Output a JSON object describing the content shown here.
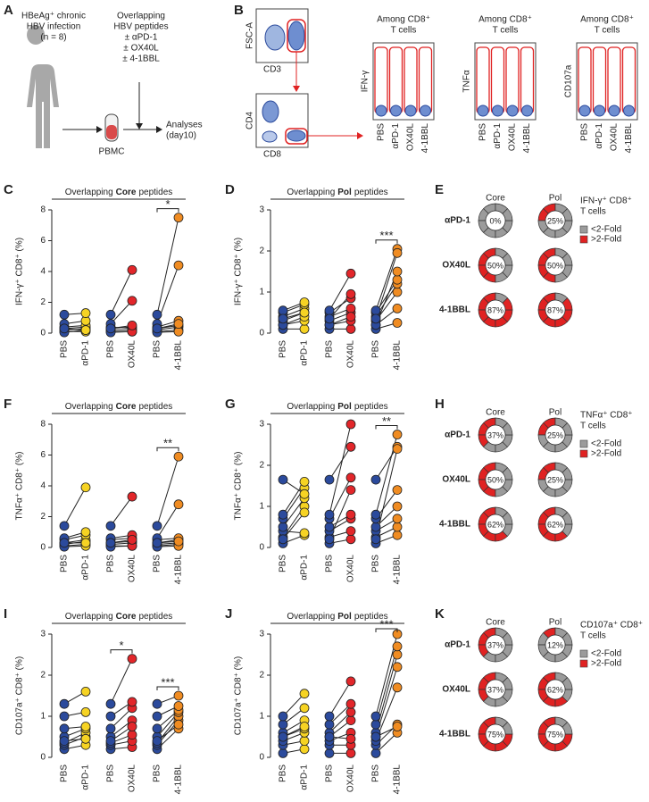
{
  "panel_labels": [
    "A",
    "B",
    "C",
    "D",
    "E",
    "F",
    "G",
    "H",
    "I",
    "J",
    "K"
  ],
  "schematic": {
    "patient": [
      "HBeAg⁺ chronic",
      "HBV infection",
      "(n = 8)"
    ],
    "treatment": [
      "Overlapping",
      "HBV peptides",
      "± αPD-1",
      "± OX40L",
      "± 4-1BBL"
    ],
    "sample": "PBMC",
    "readout": [
      "Analyses",
      "(day10)"
    ]
  },
  "flow": {
    "gating_axes": [
      "FSC-A",
      "CD3",
      "CD4",
      "CD8"
    ],
    "plots": [
      {
        "title": [
          "Among CD8⁺",
          "T cells"
        ],
        "y_label": "IFN-γ"
      },
      {
        "title": [
          "Among CD8⁺",
          "T cells"
        ],
        "y_label": "TNFα"
      },
      {
        "title": [
          "Among CD8⁺",
          "T cells"
        ],
        "y_label": "CD107a"
      }
    ],
    "conditions": [
      "PBS",
      "αPD-1",
      "OX40L",
      "4-1BBL"
    ]
  },
  "chart_data": [
    {
      "type": "paired-dot",
      "title": [
        "Overlapping",
        "Core",
        "peptides"
      ],
      "y_label": "IFN-γ⁺ CD8⁺ (%)",
      "categories": [
        "PBS",
        "αPD-1",
        "PBS",
        "OX40L",
        "PBS",
        "4-1BBL"
      ],
      "colors": [
        "#2b4a9c",
        "#f6d323",
        "#2b4a9c",
        "#e2262a",
        "#2b4a9c",
        "#f08c22"
      ],
      "values": [
        [
          0.1,
          0.2,
          0.3,
          0.4,
          0.6,
          1.2,
          0.05,
          0.3
        ],
        [
          0.1,
          0.3,
          0.4,
          0.5,
          0.8,
          1.3,
          0.2,
          0.2
        ],
        [
          0.1,
          0.2,
          0.3,
          0.4,
          0.6,
          1.2,
          0.05,
          0.3
        ],
        [
          0.1,
          0.2,
          0.4,
          0.3,
          2.1,
          4.1,
          0.1,
          0.5
        ],
        [
          0.1,
          0.2,
          0.3,
          0.4,
          0.6,
          1.2,
          0.05,
          0.3
        ],
        [
          0.2,
          0.4,
          0.5,
          0.8,
          4.4,
          7.5,
          0.1,
          0.6
        ]
      ],
      "ylim": [
        0,
        8
      ],
      "yticks": [
        0,
        2,
        4,
        6,
        8
      ],
      "significance": [
        null,
        null,
        "*"
      ]
    },
    {
      "type": "paired-dot",
      "title": [
        "Overlapping",
        "Pol",
        "peptides"
      ],
      "y_label": "IFN-γ⁺ CD8⁺ (%)",
      "categories": [
        "PBS",
        "αPD-1",
        "PBS",
        "OX40L",
        "PBS",
        "4-1BBL"
      ],
      "colors": [
        "#2b4a9c",
        "#f6d323",
        "#2b4a9c",
        "#e2262a",
        "#2b4a9c",
        "#f08c22"
      ],
      "values": [
        [
          0.1,
          0.2,
          0.3,
          0.4,
          0.5,
          0.55,
          0.2,
          0.35
        ],
        [
          0.1,
          0.3,
          0.5,
          0.6,
          0.7,
          0.75,
          0.4,
          0.5
        ],
        [
          0.1,
          0.2,
          0.3,
          0.4,
          0.5,
          0.55,
          0.2,
          0.35
        ],
        [
          0.1,
          0.3,
          0.5,
          0.6,
          0.85,
          1.45,
          0.4,
          0.95
        ],
        [
          0.1,
          0.2,
          0.3,
          0.4,
          0.5,
          0.55,
          0.2,
          0.35
        ],
        [
          0.25,
          0.6,
          1.0,
          1.2,
          1.3,
          2.05,
          1.5,
          1.95
        ]
      ],
      "ylim": [
        0,
        3
      ],
      "yticks": [
        0,
        1,
        2,
        3
      ],
      "significance": [
        null,
        null,
        "***"
      ]
    },
    {
      "type": "donut-grid",
      "title": [
        "IFN-γ⁺ CD8⁺",
        "T cells"
      ],
      "columns": [
        "Core",
        "Pol"
      ],
      "rows": [
        "αPD-1",
        "OX40L",
        "4-1BBL"
      ],
      "values": [
        [
          0,
          25
        ],
        [
          50,
          50
        ],
        [
          87,
          87
        ]
      ],
      "value_labels": [
        [
          "0%",
          "25%"
        ],
        [
          "50%",
          "50%"
        ],
        [
          "87%",
          "87%"
        ]
      ],
      "legend": [
        {
          "name": "<2-Fold",
          "color": "#9b9b9b"
        },
        {
          "name": ">2-Fold",
          "color": "#e02222"
        }
      ]
    },
    {
      "type": "paired-dot",
      "title": [
        "Overlapping",
        "Core",
        "peptides"
      ],
      "y_label": "TNFα⁺ CD8⁺ (%)",
      "categories": [
        "PBS",
        "αPD-1",
        "PBS",
        "OX40L",
        "PBS",
        "4-1BBL"
      ],
      "colors": [
        "#2b4a9c",
        "#f6d323",
        "#2b4a9c",
        "#e2262a",
        "#2b4a9c",
        "#f08c22"
      ],
      "values": [
        [
          0.1,
          0.2,
          0.3,
          0.5,
          0.6,
          1.4,
          0.05,
          0.3
        ],
        [
          0.2,
          0.4,
          0.5,
          0.8,
          1.0,
          3.9,
          0.1,
          0.3
        ],
        [
          0.1,
          0.2,
          0.3,
          0.5,
          0.6,
          1.4,
          0.05,
          0.3
        ],
        [
          0.1,
          0.3,
          0.4,
          0.6,
          0.8,
          3.3,
          0.1,
          0.5
        ],
        [
          0.1,
          0.2,
          0.3,
          0.5,
          0.6,
          1.4,
          0.05,
          0.3
        ],
        [
          0.2,
          0.3,
          0.5,
          0.6,
          2.8,
          5.9,
          0.1,
          0.4
        ]
      ],
      "ylim": [
        0,
        8
      ],
      "yticks": [
        0,
        2,
        4,
        6,
        8
      ],
      "significance": [
        null,
        null,
        "**"
      ]
    },
    {
      "type": "paired-dot",
      "title": [
        "Overlapping",
        "Pol",
        "peptides"
      ],
      "y_label": "TNFα⁺ CD8⁺ (%)",
      "categories": [
        "PBS",
        "αPD-1",
        "PBS",
        "OX40L",
        "PBS",
        "4-1BBL"
      ],
      "colors": [
        "#2b4a9c",
        "#f6d323",
        "#2b4a9c",
        "#e2262a",
        "#2b4a9c",
        "#f08c22"
      ],
      "values": [
        [
          0.1,
          0.25,
          0.4,
          0.5,
          0.7,
          0.8,
          1.65,
          0.2
        ],
        [
          0.3,
          1.0,
          0.35,
          1.2,
          1.45,
          1.6,
          1.3,
          0.85
        ],
        [
          0.1,
          0.25,
          0.4,
          0.5,
          0.7,
          0.8,
          1.65,
          0.2
        ],
        [
          0.2,
          0.4,
          0.7,
          0.8,
          1.7,
          3.0,
          2.45,
          1.4
        ],
        [
          0.1,
          0.25,
          0.4,
          0.5,
          0.7,
          0.8,
          1.65,
          0.2
        ],
        [
          0.3,
          0.5,
          0.7,
          1.0,
          1.4,
          2.75,
          2.45,
          2.4
        ]
      ],
      "ylim": [
        0,
        3
      ],
      "yticks": [
        0,
        1,
        2,
        3
      ],
      "significance": [
        null,
        null,
        "**"
      ]
    },
    {
      "type": "donut-grid",
      "title": [
        "TNFα⁺ CD8⁺",
        "T cells"
      ],
      "columns": [
        "Core",
        "Pol"
      ],
      "rows": [
        "αPD-1",
        "OX40L",
        "4-1BBL"
      ],
      "values": [
        [
          37,
          25
        ],
        [
          50,
          25
        ],
        [
          62,
          62
        ]
      ],
      "value_labels": [
        [
          "37%",
          "25%"
        ],
        [
          "50%",
          "25%"
        ],
        [
          "62%",
          "62%"
        ]
      ],
      "legend": [
        {
          "name": "<2-Fold",
          "color": "#9b9b9b"
        },
        {
          "name": ">2-Fold",
          "color": "#e02222"
        }
      ]
    },
    {
      "type": "paired-dot",
      "title": [
        "Overlapping",
        "Core",
        "peptides"
      ],
      "y_label": "CD107a⁺ CD8⁺ (%)",
      "categories": [
        "PBS",
        "αPD-1",
        "PBS",
        "OX40L",
        "PBS",
        "4-1BBL"
      ],
      "colors": [
        "#2b4a9c",
        "#f6d323",
        "#2b4a9c",
        "#e2262a",
        "#2b4a9c",
        "#f08c22"
      ],
      "values": [
        [
          0.2,
          0.3,
          0.35,
          0.5,
          0.7,
          1.0,
          1.3,
          0.4
        ],
        [
          0.3,
          0.5,
          0.6,
          0.7,
          0.75,
          1.1,
          1.6,
          0.45
        ],
        [
          0.2,
          0.3,
          0.35,
          0.5,
          0.7,
          1.0,
          1.3,
          0.4
        ],
        [
          0.25,
          0.4,
          0.55,
          0.9,
          1.2,
          1.35,
          2.4,
          0.75
        ],
        [
          0.2,
          0.3,
          0.35,
          0.5,
          0.7,
          1.0,
          1.3,
          0.4
        ],
        [
          0.7,
          0.9,
          1.0,
          1.1,
          1.15,
          1.25,
          1.5,
          0.8
        ]
      ],
      "ylim": [
        0,
        3
      ],
      "yticks": [
        0,
        1,
        2,
        3
      ],
      "significance": [
        null,
        "*",
        "***"
      ]
    },
    {
      "type": "paired-dot",
      "title": [
        "Overlapping",
        "Pol",
        "peptides"
      ],
      "y_label": "CD107a⁺ CD8⁺ (%)",
      "categories": [
        "PBS",
        "αPD-1",
        "PBS",
        "OX40L",
        "PBS",
        "4-1BBL"
      ],
      "colors": [
        "#2b4a9c",
        "#f6d323",
        "#2b4a9c",
        "#e2262a",
        "#2b4a9c",
        "#f08c22"
      ],
      "values": [
        [
          0.1,
          0.3,
          0.4,
          0.5,
          0.6,
          0.8,
          1.0,
          0.5
        ],
        [
          0.2,
          0.4,
          0.6,
          0.7,
          0.9,
          1.2,
          1.55,
          0.75
        ],
        [
          0.1,
          0.3,
          0.4,
          0.5,
          0.6,
          0.8,
          1.0,
          0.5
        ],
        [
          0.1,
          0.3,
          0.6,
          0.9,
          1.1,
          1.3,
          1.85,
          0.45
        ],
        [
          0.1,
          0.3,
          0.4,
          0.5,
          0.6,
          0.8,
          1.0,
          0.5
        ],
        [
          0.6,
          0.8,
          1.7,
          2.2,
          2.5,
          2.7,
          3.0,
          0.75
        ]
      ],
      "ylim": [
        0,
        3
      ],
      "yticks": [
        0,
        1,
        2,
        3
      ],
      "significance": [
        null,
        null,
        "***"
      ]
    },
    {
      "type": "donut-grid",
      "title": [
        "CD107a⁺ CD8⁺",
        "T cells"
      ],
      "columns": [
        "Core",
        "Pol"
      ],
      "rows": [
        "αPD-1",
        "OX40L",
        "4-1BBL"
      ],
      "values": [
        [
          37,
          12
        ],
        [
          37,
          62
        ],
        [
          75,
          75
        ]
      ],
      "value_labels": [
        [
          "37%",
          "12%"
        ],
        [
          "37%",
          "62%"
        ],
        [
          "75%",
          "75%"
        ]
      ],
      "legend": [
        {
          "name": "<2-Fold",
          "color": "#9b9b9b"
        },
        {
          "name": ">2-Fold",
          "color": "#e02222"
        }
      ]
    }
  ]
}
